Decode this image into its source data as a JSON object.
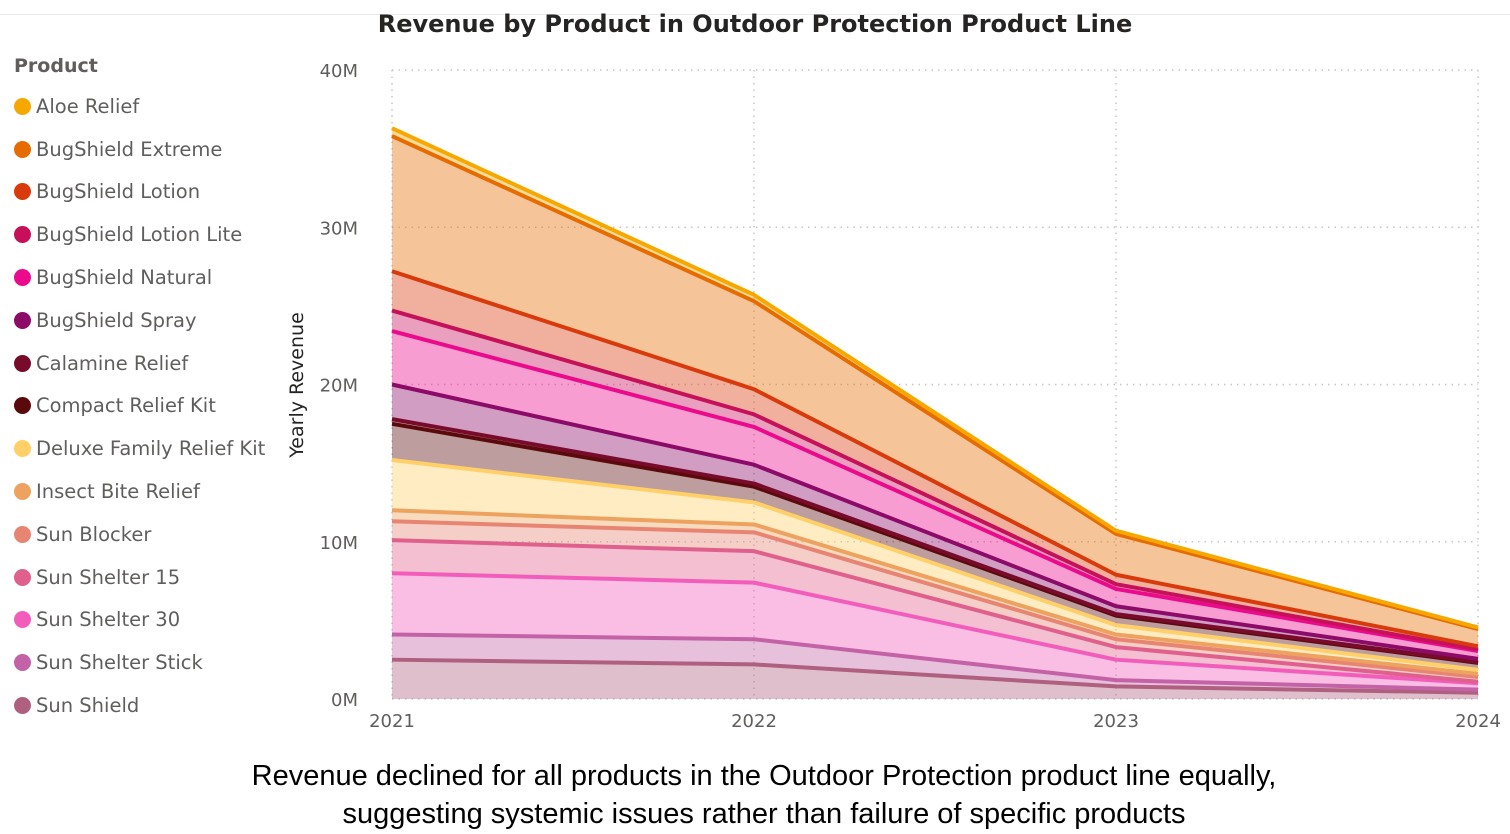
{
  "chart_data": {
    "type": "area",
    "stacked": true,
    "title": "Revenue by Product in Outdoor Protection Product Line",
    "ylabel": "Yearly Revenue",
    "xlabel": "",
    "x": [
      "2021",
      "2022",
      "2023",
      "2024"
    ],
    "ylim": [
      0,
      40
    ],
    "y_ticks": [
      "0M",
      "10M",
      "20M",
      "30M",
      "40M"
    ],
    "y_unit": "M",
    "grid": true,
    "legend": {
      "title": "Product",
      "placement": "left"
    },
    "series": [
      {
        "name": "Aloe Relief",
        "color": "#F6A800",
        "values": [
          0.5,
          0.4,
          0.2,
          0.1
        ]
      },
      {
        "name": "BugShield Extreme",
        "color": "#E66C00",
        "values": [
          8.6,
          5.6,
          2.6,
          1.1
        ]
      },
      {
        "name": "BugShield Lotion",
        "color": "#D93A0B",
        "values": [
          2.5,
          1.6,
          0.6,
          0.2
        ]
      },
      {
        "name": "BugShield Lotion Lite",
        "color": "#C7105A",
        "values": [
          1.3,
          0.8,
          0.3,
          0.1
        ]
      },
      {
        "name": "BugShield Natural",
        "color": "#EC0A8C",
        "values": [
          3.4,
          2.4,
          1.1,
          0.5
        ]
      },
      {
        "name": "BugShield Spray",
        "color": "#8C0B68",
        "values": [
          2.2,
          1.2,
          0.5,
          0.2
        ]
      },
      {
        "name": "Calamine Relief",
        "color": "#780A2A",
        "values": [
          0.3,
          0.2,
          0.1,
          0.05
        ]
      },
      {
        "name": "Compact Relief Kit",
        "color": "#5A0A0A",
        "values": [
          2.3,
          1.0,
          0.6,
          0.45
        ]
      },
      {
        "name": "Deluxe Family Relief Kit",
        "color": "#FFCF68",
        "values": [
          3.2,
          1.4,
          0.6,
          0.25
        ]
      },
      {
        "name": "Insect Bite Relief",
        "color": "#EDA25F",
        "values": [
          0.7,
          0.5,
          0.3,
          0.2
        ]
      },
      {
        "name": "Sun Blocker",
        "color": "#E78572",
        "values": [
          1.2,
          1.2,
          0.5,
          0.3
        ]
      },
      {
        "name": "Sun Shelter 15",
        "color": "#E0608D",
        "values": [
          2.1,
          2.0,
          0.8,
          0.1
        ]
      },
      {
        "name": "Sun Shelter 30",
        "color": "#F25DBC",
        "values": [
          3.9,
          3.6,
          1.3,
          0.4
        ]
      },
      {
        "name": "Sun Shelter Stick",
        "color": "#C462A8",
        "values": [
          1.6,
          1.6,
          0.4,
          0.2
        ]
      },
      {
        "name": "Sun Shield",
        "color": "#B0607F",
        "values": [
          2.5,
          2.2,
          0.8,
          0.4
        ]
      }
    ]
  },
  "caption": {
    "line1": "Revenue declined for all products in the Outdoor Protection product line equally,",
    "line2": "suggesting systemic issues rather than failure of specific products"
  }
}
